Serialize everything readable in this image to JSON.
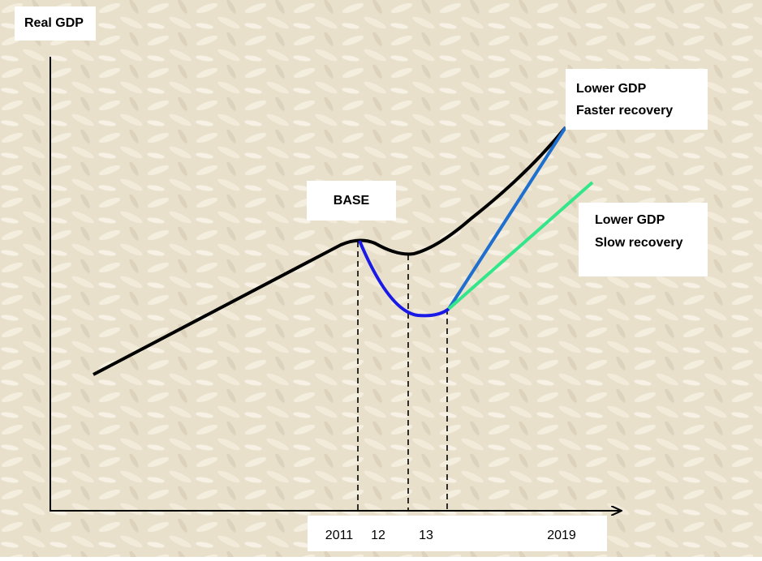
{
  "y_axis_label": "Real GDP",
  "annotations": {
    "base": "BASE",
    "faster": {
      "line1": "Lower GDP",
      "line2": "Faster recovery"
    },
    "slow": {
      "line1": "Lower GDP",
      "line2": "Slow recovery"
    }
  },
  "x_labels": [
    "2011",
    "12",
    "13",
    "2019"
  ]
}
